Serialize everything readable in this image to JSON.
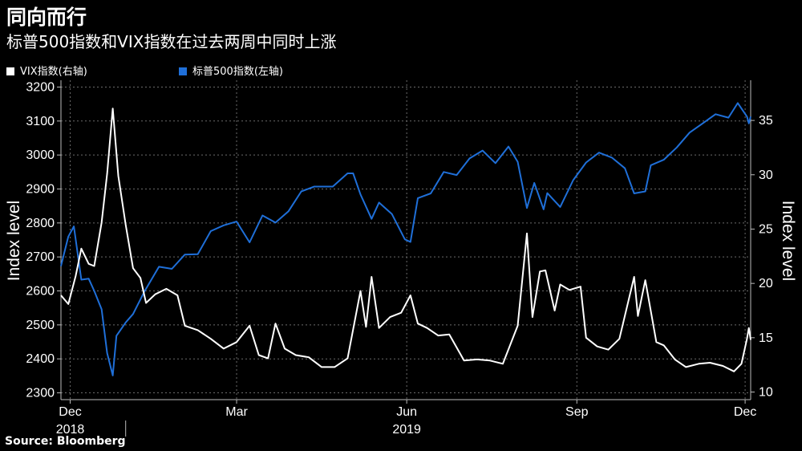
{
  "header": {
    "title": "同向而行",
    "subtitle": "标普500指数和VIX指数在过去两周中同时上涨"
  },
  "legend": [
    {
      "label": "VIX指数(右轴)",
      "color": "#ffffff"
    },
    {
      "label": "标普500指数(左轴)",
      "color": "#1f6fd8"
    }
  ],
  "source": "Source: Bloomberg",
  "chart_data": {
    "type": "line",
    "title": "同向而行",
    "subtitle": "标普500指数和VIX指数在过去两周中同时上涨",
    "x_range": [
      "2018-11-26",
      "2019-12-04"
    ],
    "x_ticks": [
      {
        "date": "2018-12-01",
        "label": "Dec"
      },
      {
        "date": "2019-03-01",
        "label": "Mar"
      },
      {
        "date": "2019-06-01",
        "label": "Jun"
      },
      {
        "date": "2019-09-01",
        "label": "Sep"
      },
      {
        "date": "2019-12-01",
        "label": "Dec"
      }
    ],
    "year_labels": [
      {
        "date": "2018-12-01",
        "label": "2018"
      },
      {
        "date": "2019-06-01",
        "label": "2019"
      }
    ],
    "y_left": {
      "label": "Index level",
      "range": [
        2280,
        3220
      ],
      "ticks": [
        2300,
        2400,
        2500,
        2600,
        2700,
        2800,
        2900,
        3000,
        3100,
        3200
      ]
    },
    "y_right": {
      "label": "Index level",
      "range": [
        9.3,
        38.7
      ],
      "ticks": [
        10,
        15,
        20,
        25,
        30,
        35
      ]
    },
    "grid": true,
    "legend_position": "top-left",
    "series": [
      {
        "name": "VIX指数(右轴)",
        "axis": "right",
        "color": "#ffffff",
        "points": [
          [
            "2018-11-26",
            18.9
          ],
          [
            "2018-11-30",
            18.1
          ],
          [
            "2018-12-04",
            20.7
          ],
          [
            "2018-12-07",
            23.2
          ],
          [
            "2018-12-11",
            21.8
          ],
          [
            "2018-12-14",
            21.6
          ],
          [
            "2018-12-18",
            25.6
          ],
          [
            "2018-12-21",
            30.1
          ],
          [
            "2018-12-24",
            36.1
          ],
          [
            "2018-12-27",
            29.9
          ],
          [
            "2018-12-31",
            25.4
          ],
          [
            "2019-01-04",
            21.4
          ],
          [
            "2019-01-08",
            20.5
          ],
          [
            "2019-01-11",
            18.2
          ],
          [
            "2019-01-16",
            19.0
          ],
          [
            "2019-01-22",
            19.5
          ],
          [
            "2019-01-28",
            18.9
          ],
          [
            "2019-02-01",
            16.1
          ],
          [
            "2019-02-08",
            15.7
          ],
          [
            "2019-02-15",
            14.9
          ],
          [
            "2019-02-22",
            14.0
          ],
          [
            "2019-03-01",
            14.6
          ],
          [
            "2019-03-08",
            16.1
          ],
          [
            "2019-03-13",
            13.4
          ],
          [
            "2019-03-18",
            13.1
          ],
          [
            "2019-03-22",
            16.3
          ],
          [
            "2019-03-27",
            14.0
          ],
          [
            "2019-04-02",
            13.4
          ],
          [
            "2019-04-09",
            13.2
          ],
          [
            "2019-04-16",
            12.3
          ],
          [
            "2019-04-23",
            12.3
          ],
          [
            "2019-04-30",
            13.1
          ],
          [
            "2019-05-07",
            19.3
          ],
          [
            "2019-05-10",
            16.0
          ],
          [
            "2019-05-13",
            20.6
          ],
          [
            "2019-05-17",
            15.9
          ],
          [
            "2019-05-23",
            16.9
          ],
          [
            "2019-05-29",
            17.3
          ],
          [
            "2019-06-03",
            18.9
          ],
          [
            "2019-06-07",
            16.3
          ],
          [
            "2019-06-12",
            15.9
          ],
          [
            "2019-06-18",
            15.2
          ],
          [
            "2019-06-24",
            15.3
          ],
          [
            "2019-07-02",
            12.9
          ],
          [
            "2019-07-09",
            13.0
          ],
          [
            "2019-07-16",
            12.9
          ],
          [
            "2019-07-23",
            12.6
          ],
          [
            "2019-07-31",
            16.1
          ],
          [
            "2019-08-05",
            24.6
          ],
          [
            "2019-08-08",
            16.9
          ],
          [
            "2019-08-12",
            21.1
          ],
          [
            "2019-08-15",
            21.2
          ],
          [
            "2019-08-20",
            17.5
          ],
          [
            "2019-08-23",
            19.9
          ],
          [
            "2019-08-28",
            19.4
          ],
          [
            "2019-09-03",
            19.7
          ],
          [
            "2019-09-06",
            15.0
          ],
          [
            "2019-09-12",
            14.2
          ],
          [
            "2019-09-18",
            13.9
          ],
          [
            "2019-09-24",
            14.9
          ],
          [
            "2019-10-02",
            20.6
          ],
          [
            "2019-10-04",
            17.0
          ],
          [
            "2019-10-08",
            20.3
          ],
          [
            "2019-10-14",
            14.6
          ],
          [
            "2019-10-18",
            14.3
          ],
          [
            "2019-10-24",
            13.0
          ],
          [
            "2019-10-30",
            12.3
          ],
          [
            "2019-11-06",
            12.6
          ],
          [
            "2019-11-12",
            12.7
          ],
          [
            "2019-11-19",
            12.4
          ],
          [
            "2019-11-25",
            11.9
          ],
          [
            "2019-11-29",
            12.6
          ],
          [
            "2019-12-02",
            14.9
          ],
          [
            "2019-12-03",
            15.9
          ],
          [
            "2019-12-04",
            14.8
          ]
        ]
      },
      {
        "name": "标普500指数(左轴)",
        "axis": "left",
        "color": "#1f6fd8",
        "points": [
          [
            "2018-11-26",
            2673
          ],
          [
            "2018-11-30",
            2760
          ],
          [
            "2018-12-03",
            2790
          ],
          [
            "2018-12-07",
            2633
          ],
          [
            "2018-12-11",
            2636
          ],
          [
            "2018-12-14",
            2600
          ],
          [
            "2018-12-18",
            2546
          ],
          [
            "2018-12-21",
            2417
          ],
          [
            "2018-12-24",
            2351
          ],
          [
            "2018-12-26",
            2468
          ],
          [
            "2018-12-31",
            2507
          ],
          [
            "2019-01-04",
            2532
          ],
          [
            "2019-01-10",
            2597
          ],
          [
            "2019-01-18",
            2671
          ],
          [
            "2019-01-25",
            2665
          ],
          [
            "2019-02-01",
            2707
          ],
          [
            "2019-02-08",
            2708
          ],
          [
            "2019-02-15",
            2776
          ],
          [
            "2019-02-22",
            2793
          ],
          [
            "2019-03-01",
            2804
          ],
          [
            "2019-03-08",
            2743
          ],
          [
            "2019-03-15",
            2822
          ],
          [
            "2019-03-22",
            2801
          ],
          [
            "2019-03-29",
            2834
          ],
          [
            "2019-04-05",
            2893
          ],
          [
            "2019-04-12",
            2907
          ],
          [
            "2019-04-22",
            2907
          ],
          [
            "2019-04-30",
            2946
          ],
          [
            "2019-05-03",
            2946
          ],
          [
            "2019-05-07",
            2884
          ],
          [
            "2019-05-13",
            2812
          ],
          [
            "2019-05-17",
            2860
          ],
          [
            "2019-05-24",
            2826
          ],
          [
            "2019-05-31",
            2752
          ],
          [
            "2019-06-03",
            2744
          ],
          [
            "2019-06-07",
            2873
          ],
          [
            "2019-06-14",
            2887
          ],
          [
            "2019-06-21",
            2950
          ],
          [
            "2019-06-28",
            2941
          ],
          [
            "2019-07-05",
            2990
          ],
          [
            "2019-07-12",
            3013
          ],
          [
            "2019-07-19",
            2976
          ],
          [
            "2019-07-26",
            3025
          ],
          [
            "2019-07-31",
            2980
          ],
          [
            "2019-08-05",
            2844
          ],
          [
            "2019-08-09",
            2918
          ],
          [
            "2019-08-14",
            2840
          ],
          [
            "2019-08-16",
            2888
          ],
          [
            "2019-08-23",
            2847
          ],
          [
            "2019-08-30",
            2926
          ],
          [
            "2019-09-06",
            2978
          ],
          [
            "2019-09-13",
            3007
          ],
          [
            "2019-09-20",
            2992
          ],
          [
            "2019-09-27",
            2961
          ],
          [
            "2019-10-02",
            2887
          ],
          [
            "2019-10-08",
            2893
          ],
          [
            "2019-10-11",
            2970
          ],
          [
            "2019-10-18",
            2986
          ],
          [
            "2019-10-25",
            3022
          ],
          [
            "2019-11-01",
            3066
          ],
          [
            "2019-11-08",
            3093
          ],
          [
            "2019-11-15",
            3120
          ],
          [
            "2019-11-22",
            3110
          ],
          [
            "2019-11-27",
            3153
          ],
          [
            "2019-12-02",
            3113
          ],
          [
            "2019-12-03",
            3093
          ],
          [
            "2019-12-04",
            3113
          ]
        ]
      }
    ]
  }
}
